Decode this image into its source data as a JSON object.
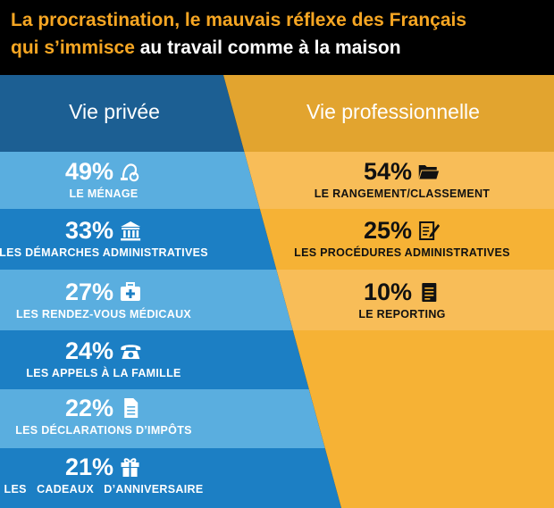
{
  "header": {
    "line1": "La procrastination, le mauvais réflexe des Français",
    "line2_highlight": "qui s’immisce",
    "line2_rest": "au travail comme à la maison"
  },
  "columns": {
    "left_title": "Vie privée",
    "right_title": "Vie professionnelle"
  },
  "colors": {
    "header_bg": "#000000",
    "accent_orange": "#F6A623",
    "blue_header": "#1C5F93",
    "blue_light": "#5AAEDF",
    "blue_dark": "#1C7FC4",
    "orange_header": "#E2A42F",
    "orange_light": "#F8BD58",
    "orange_dark": "#F6B235"
  },
  "chart_data": {
    "type": "table",
    "series": [
      {
        "name": "Vie privée",
        "items": [
          {
            "value": "49%",
            "label": "LE MÉNAGE",
            "icon": "vacuum-icon"
          },
          {
            "value": "33%",
            "label": "LES DÉMARCHES ADMINISTRATIVES",
            "icon": "bank-icon"
          },
          {
            "value": "27%",
            "label": "LES RENDEZ-VOUS MÉDICAUX",
            "icon": "medical-kit-icon"
          },
          {
            "value": "24%",
            "label": "LES APPELS À LA FAMILLE",
            "icon": "telephone-icon"
          },
          {
            "value": "22%",
            "label": "LES DÉCLARATIONS D’IMPÔTS",
            "icon": "document-icon"
          },
          {
            "value": "21%",
            "label": "LES   CADEAUX   D’ANNIVERSAIRE",
            "icon": "gift-icon"
          }
        ]
      },
      {
        "name": "Vie professionnelle",
        "items": [
          {
            "value": "54%",
            "label": "LE RANGEMENT/CLASSEMENT",
            "icon": "folder-icon"
          },
          {
            "value": "25%",
            "label": "LES PROCÉDURES ADMINISTRATIVES",
            "icon": "edit-form-icon"
          },
          {
            "value": "10%",
            "label": "LE REPORTING",
            "icon": "report-icon"
          }
        ]
      }
    ]
  }
}
